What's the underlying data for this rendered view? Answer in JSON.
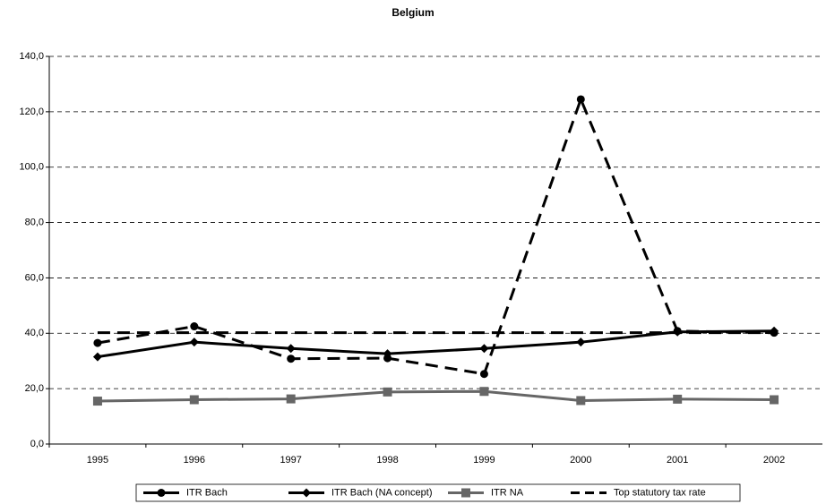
{
  "chart_data": {
    "type": "line",
    "title": "Belgium",
    "categories": [
      "1995",
      "1996",
      "1997",
      "1998",
      "1999",
      "2000",
      "2001",
      "2002"
    ],
    "series": [
      {
        "name": "ITR Bach",
        "color": "#000000",
        "dashed": true,
        "marker": "circle",
        "values": [
          36.5,
          42.5,
          30.8,
          31.0,
          25.3,
          124.5,
          40.8,
          40.2
        ]
      },
      {
        "name": "ITR Bach (NA concept)",
        "color": "#000000",
        "dashed": false,
        "marker": "diamond",
        "values": [
          31.5,
          36.8,
          34.5,
          32.6,
          34.5,
          36.8,
          40.5,
          40.8
        ]
      },
      {
        "name": "ITR NA",
        "color": "#666666",
        "dashed": false,
        "marker": "square",
        "values": [
          15.5,
          16.0,
          16.3,
          18.8,
          19.0,
          15.7,
          16.2,
          16.0
        ]
      },
      {
        "name": "Top statutory tax rate",
        "color": "#000000",
        "dashed": true,
        "marker": "none",
        "values": [
          40.2,
          40.2,
          40.2,
          40.2,
          40.2,
          40.2,
          40.2,
          40.2
        ]
      }
    ],
    "ylim": [
      0,
      140
    ],
    "yticks": [
      {
        "value": 0,
        "label": "0,0"
      },
      {
        "value": 20,
        "label": "20,0"
      },
      {
        "value": 40,
        "label": "40,0"
      },
      {
        "value": 60,
        "label": "60,0"
      },
      {
        "value": 80,
        "label": "80,0"
      },
      {
        "value": 100,
        "label": "100,0"
      },
      {
        "value": 120,
        "label": "120,0"
      },
      {
        "value": 140,
        "label": "140,0"
      }
    ],
    "grid": true,
    "legend": "bottom"
  }
}
